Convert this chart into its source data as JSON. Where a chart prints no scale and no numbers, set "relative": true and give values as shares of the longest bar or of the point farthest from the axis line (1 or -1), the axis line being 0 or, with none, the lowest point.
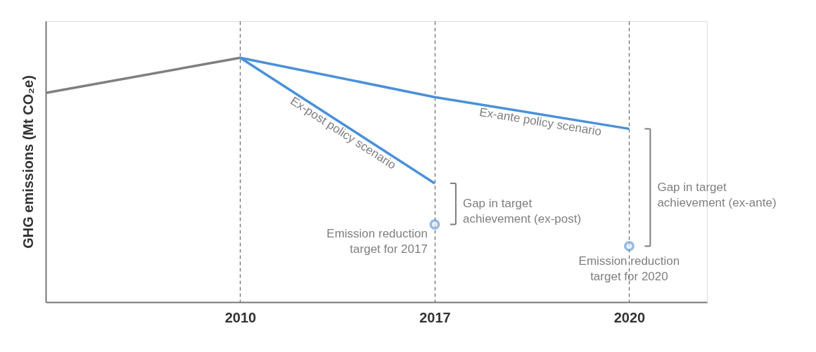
{
  "chart_data": {
    "type": "line",
    "relative": true,
    "ylabel": "GHG emissions (Mt CO₂e)",
    "categories": [
      null,
      "2010",
      "2017",
      "2020"
    ],
    "series": [
      {
        "color": "#7f7f7f",
        "values": [
          0.856,
          1,
          null,
          null
        ]
      },
      {
        "name": "Ex-post policy scenario",
        "color": "#4a90d9",
        "values": [
          null,
          1,
          0.486,
          null
        ]
      },
      {
        "name": "Ex-ante policy scenario",
        "color": "#4a90d9",
        "values": [
          null,
          1,
          0.839,
          0.709
        ]
      },
      {
        "type": "scatter",
        "color": "#6a9fd8",
        "marker": "circle",
        "values": [
          null,
          null,
          0.318,
          0.229
        ]
      }
    ],
    "annotations": [
      "Gap in target\nachievement (ex-post)",
      "Gap in target\nachievement (ex-ante)",
      {
        "text": "Emission reduction\ntarget for 2017",
        "x": "2017",
        "y": 0.318
      },
      {
        "text": "Emission reduction\ntarget for 2020",
        "x": "2020",
        "y": 0.229
      }
    ],
    "grid": "x",
    "line_style": "solid"
  }
}
